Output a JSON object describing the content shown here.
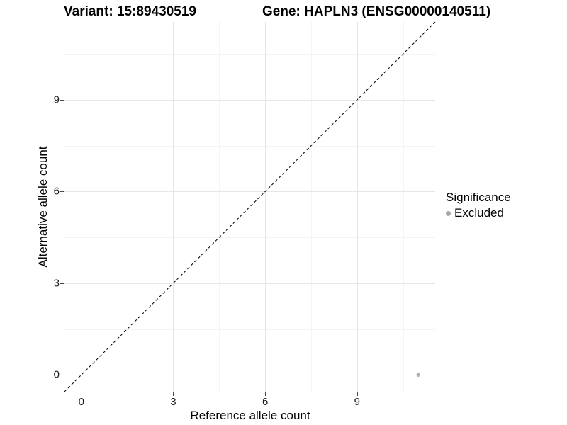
{
  "titles": {
    "variant": "Variant: 15:89430519",
    "gene": "Gene: HAPLN3 (ENSG00000140511)"
  },
  "chart_data": {
    "type": "scatter",
    "titles": [
      "Variant: 15:89430519",
      "Gene: HAPLN3 (ENSG00000140511)"
    ],
    "xlabel": "Reference allele count",
    "ylabel": "Alternative allele count",
    "xlim": [
      -0.55,
      11.55
    ],
    "ylim": [
      -0.55,
      11.55
    ],
    "x_ticks": [
      0,
      3,
      6,
      9
    ],
    "y_ticks": [
      0,
      3,
      6,
      9
    ],
    "grid": {
      "major": true,
      "minor": true
    },
    "identity_line": {
      "style": "dashed",
      "color": "#000000",
      "note": "y = x diagonal"
    },
    "series": [
      {
        "name": "Excluded",
        "color": "#b0b0b0",
        "points": [
          {
            "x": 11,
            "y": 0
          }
        ]
      }
    ],
    "legend": {
      "position": "right",
      "title": "Significance",
      "entries": [
        {
          "label": "Excluded",
          "color": "#a8a8a8",
          "marker": "circle"
        }
      ]
    }
  }
}
